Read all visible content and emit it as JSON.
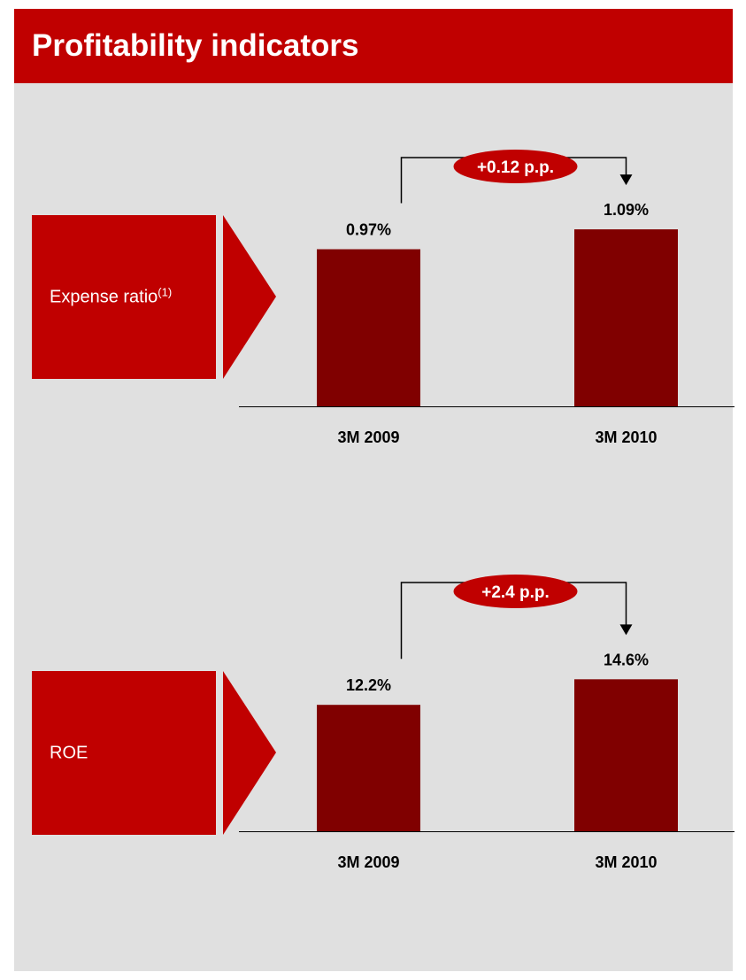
{
  "title": "Profitability indicators",
  "colors": {
    "header": "#c00000",
    "panel": "#c00000",
    "bar": "#800000",
    "badge": "#c00000",
    "background": "#e0e0e0"
  },
  "panels": [
    {
      "label": "Expense ratio",
      "label_sup": "(1)",
      "change_label": "+0.12 p.p."
    },
    {
      "label": "ROE",
      "label_sup": "",
      "change_label": "+2.4 p.p."
    }
  ],
  "chart_data": [
    {
      "type": "bar",
      "title": "Expense ratio(1)",
      "categories": [
        "3M 2009",
        "3M 2010"
      ],
      "values": [
        0.97,
        1.09
      ],
      "value_labels": [
        "0.97%",
        "1.09%"
      ],
      "unit": "%",
      "annotation": "+0.12 p.p.",
      "ylim": [
        0,
        1.55
      ],
      "grid": false
    },
    {
      "type": "bar",
      "title": "ROE",
      "categories": [
        "3M 2009",
        "3M 2010"
      ],
      "values": [
        12.2,
        14.6
      ],
      "value_labels": [
        "12.2%",
        "14.6%"
      ],
      "unit": "%",
      "annotation": "+2.4 p.p.",
      "ylim": [
        0,
        24.1
      ],
      "grid": false
    }
  ]
}
